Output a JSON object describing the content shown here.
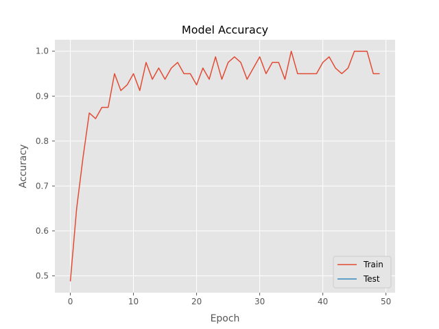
{
  "chart_data": {
    "type": "line",
    "title": "Model Accuracy",
    "xlabel": "Epoch",
    "ylabel": "Accuracy",
    "xlim": [
      -2.45,
      51.45
    ],
    "ylim": [
      0.4625,
      1.0255
    ],
    "xticks": [
      0,
      10,
      20,
      30,
      40,
      50
    ],
    "xtick_labels": [
      "0",
      "10",
      "20",
      "30",
      "40",
      "50"
    ],
    "yticks": [
      0.5,
      0.6,
      0.7,
      0.8,
      0.9,
      1.0
    ],
    "ytick_labels": [
      "0.5",
      "0.6",
      "0.7",
      "0.8",
      "0.9",
      "1.0"
    ],
    "grid": true,
    "legend_position": "lower right",
    "series": [
      {
        "name": "Train",
        "color": "#E24A33",
        "x": [
          0,
          1,
          2,
          3,
          4,
          5,
          6,
          7,
          8,
          9,
          10,
          11,
          12,
          13,
          14,
          15,
          16,
          17,
          18,
          19,
          20,
          21,
          22,
          23,
          24,
          25,
          26,
          27,
          28,
          29,
          30,
          31,
          32,
          33,
          34,
          35,
          36,
          37,
          38,
          39,
          40,
          41,
          42,
          43,
          44,
          45,
          46,
          47,
          48,
          49
        ],
        "values": [
          0.4875,
          0.65,
          0.7625,
          0.8625,
          0.85,
          0.875,
          0.875,
          0.95,
          0.9125,
          0.925,
          0.95,
          0.9125,
          0.975,
          0.9375,
          0.9625,
          0.9375,
          0.9625,
          0.975,
          0.95,
          0.95,
          0.925,
          0.9625,
          0.9375,
          0.9875,
          0.9375,
          0.975,
          0.9875,
          0.975,
          0.9375,
          0.9625,
          0.9875,
          0.95,
          0.975,
          0.975,
          0.9375,
          1.0,
          0.95,
          0.95,
          0.95,
          0.95,
          0.975,
          0.9875,
          0.9625,
          0.95,
          0.9625,
          1.0,
          1.0,
          1.0,
          0.95,
          0.95
        ]
      },
      {
        "name": "Test",
        "color": "#348ABD",
        "x": [],
        "values": []
      }
    ]
  }
}
